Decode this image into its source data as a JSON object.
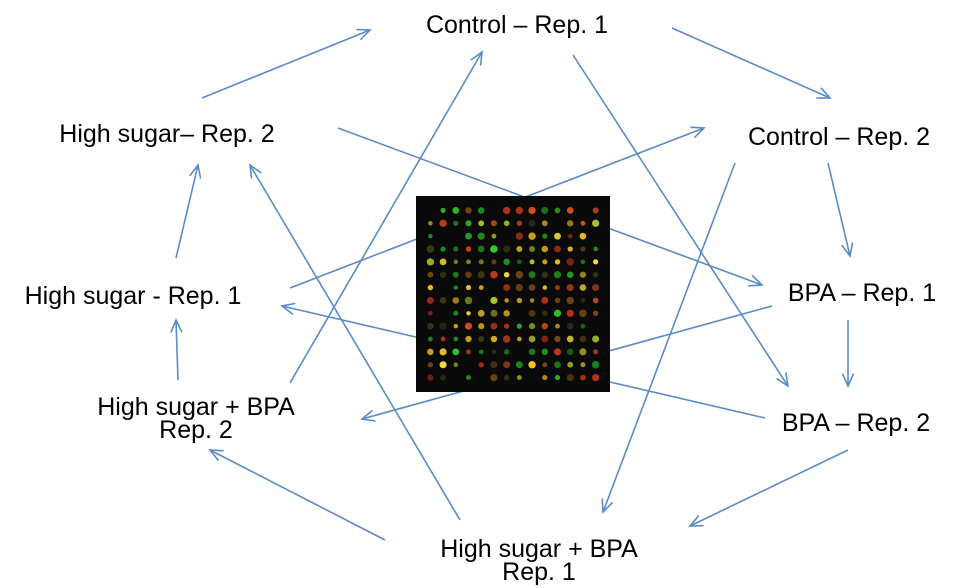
{
  "nodes": [
    {
      "id": "c1",
      "lines": [
        "Control – Rep. 1"
      ]
    },
    {
      "id": "c2",
      "lines": [
        "Control – Rep. 2"
      ]
    },
    {
      "id": "b1",
      "lines": [
        "BPA – Rep. 1"
      ]
    },
    {
      "id": "b2",
      "lines": [
        "BPA – Rep. 2"
      ]
    },
    {
      "id": "hb1",
      "lines": [
        "High sugar + BPA",
        "Rep. 1"
      ]
    },
    {
      "id": "hb2",
      "lines": [
        "High sugar + BPA",
        "Rep. 2"
      ]
    },
    {
      "id": "hs1",
      "lines": [
        "High sugar - Rep. 1"
      ]
    },
    {
      "id": "hs2",
      "lines": [
        "High sugar– Rep. 2"
      ]
    }
  ],
  "edges": [
    {
      "from": "hs2",
      "to": "c1"
    },
    {
      "from": "c1",
      "to": "c2"
    },
    {
      "from": "c2",
      "to": "b1"
    },
    {
      "from": "b1",
      "to": "b2"
    },
    {
      "from": "b2",
      "to": "hb1"
    },
    {
      "from": "hb1",
      "to": "hb2"
    },
    {
      "from": "hb2",
      "to": "hs1"
    },
    {
      "from": "hs1",
      "to": "hs2"
    },
    {
      "from": "c1",
      "to": "b2"
    },
    {
      "from": "hs2",
      "to": "b1"
    },
    {
      "from": "hs1",
      "to": "c2"
    },
    {
      "from": "hb2",
      "to": "c1"
    },
    {
      "from": "b1",
      "to": "hb2"
    },
    {
      "from": "b2",
      "to": "hs1"
    },
    {
      "from": "hb1",
      "to": "hs2"
    },
    {
      "from": "c2",
      "to": "hb1"
    }
  ],
  "microarray": {
    "rows": 14,
    "cols": 14,
    "background": "#0a0a0a",
    "palette": [
      "#ffe23a",
      "#f3c21b",
      "#35c62a",
      "#1f9c22",
      "#c8341f",
      "#e0501c",
      "#7a4a18",
      "#3a3a16",
      "#b0c82a"
    ]
  },
  "colors": {
    "arrow": "#5B8BC7",
    "text": "#000000",
    "background": "#ffffff"
  }
}
